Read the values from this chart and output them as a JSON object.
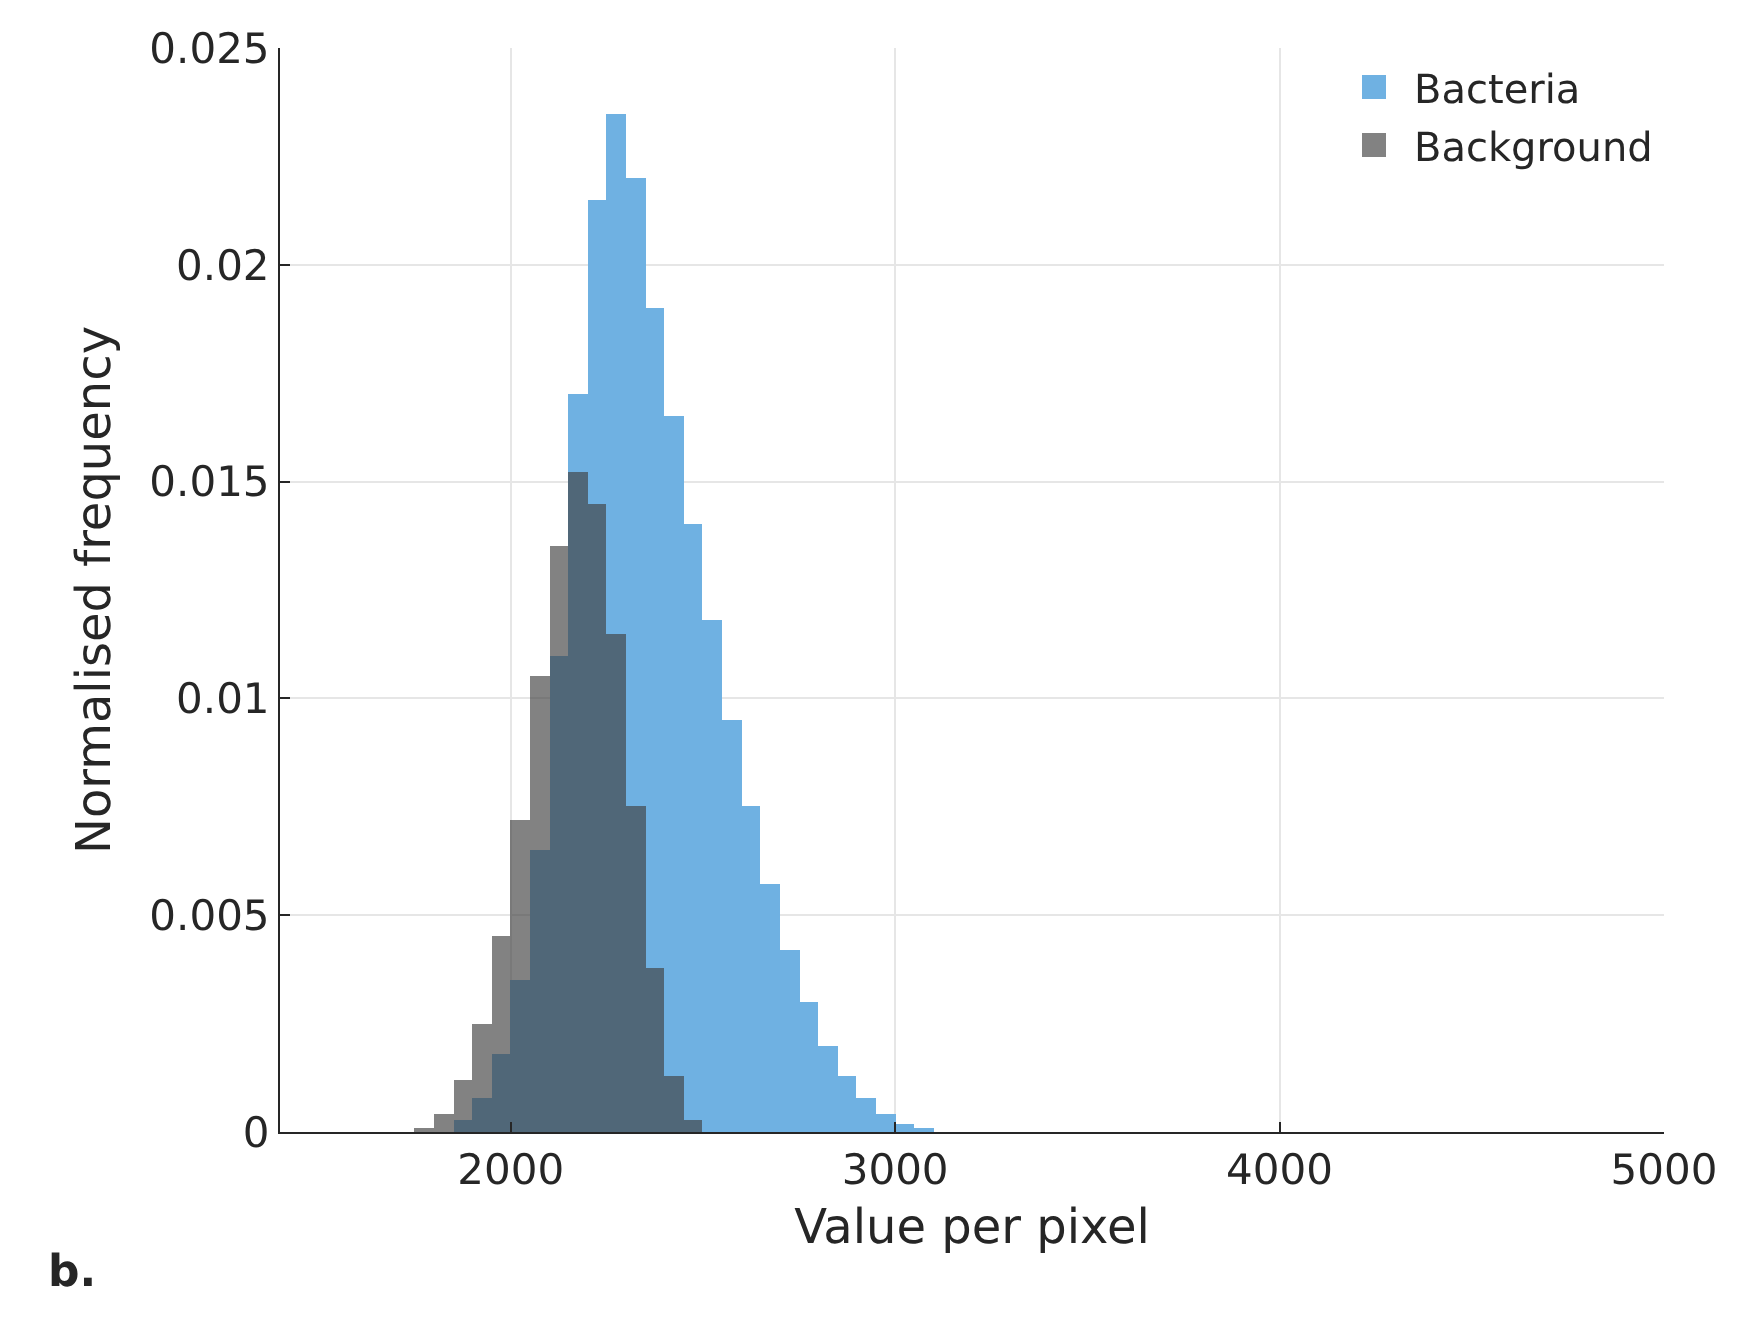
{
  "chart_data": {
    "type": "histogram",
    "xlabel": "Value per pixel",
    "ylabel": "Normalised frequency",
    "annotations": [
      "b."
    ],
    "bins": [
      1700,
      1750,
      1800,
      1850,
      1900,
      1950,
      2000,
      2050,
      2100,
      2150,
      2200,
      2250,
      2300,
      2350,
      2400,
      2450,
      2500,
      2550,
      2600,
      2650,
      2700,
      2750,
      2800,
      2850,
      2900,
      2950,
      3000,
      3050,
      3100,
      3150,
      3200
    ],
    "series": [
      {
        "name": "Bacteria",
        "color": "#6fb1e2",
        "values": [
          0,
          0,
          null,
          0.0003,
          0.0008,
          0.0018,
          0.0035,
          0.0065,
          0.011,
          0.017,
          0.0215,
          0.0235,
          0.022,
          0.019,
          0.0165,
          0.014,
          0.0118,
          0.0095,
          0.0075,
          0.0057,
          0.0042,
          0.003,
          0.002,
          0.0013,
          0.0008,
          0.0004,
          0.0002,
          0.0001,
          0,
          0
        ]
      },
      {
        "name": "Background",
        "color": "#404040",
        "values": [
          0,
          0.0001,
          0.0004,
          0.0012,
          0.0025,
          0.0045,
          0.0072,
          0.0105,
          0.0135,
          0.0152,
          0.0145,
          0.0115,
          0.0075,
          0.0038,
          0.0013,
          0.0003,
          0,
          0,
          0,
          0,
          0,
          0,
          0,
          0,
          0,
          0,
          0,
          0,
          0,
          0
        ]
      }
    ],
    "xlim": [
      1400,
      5000
    ],
    "xticks": [
      2000,
      3000,
      4000,
      5000
    ],
    "ylim": [
      0,
      0.025
    ],
    "yticks": [
      0,
      0.005,
      0.01,
      0.015,
      0.02,
      0.025
    ],
    "grid": true,
    "legend": "top right"
  }
}
